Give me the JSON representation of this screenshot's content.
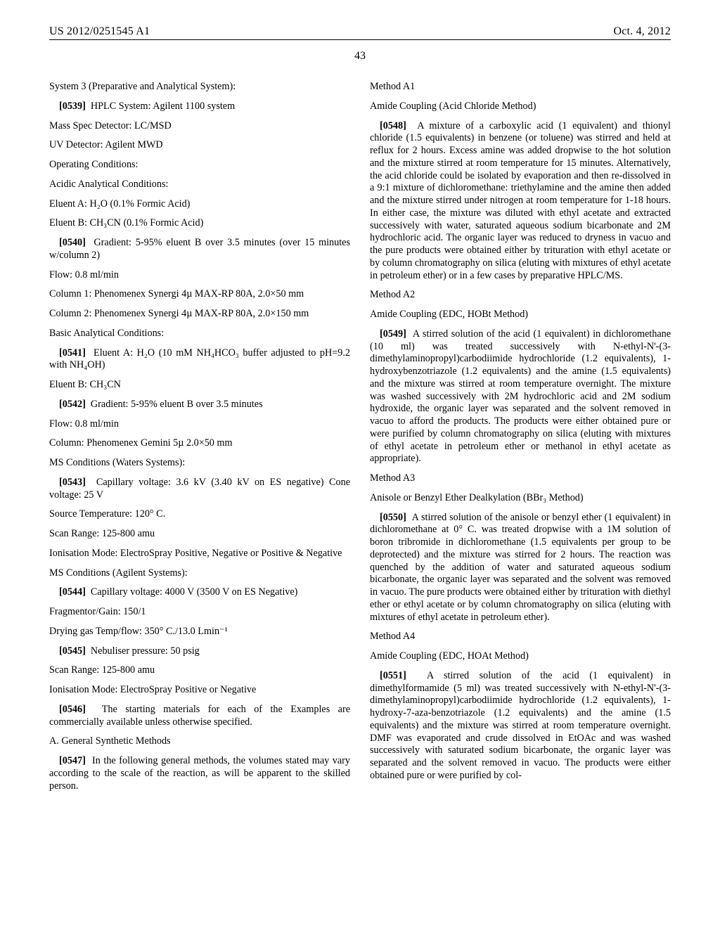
{
  "header": {
    "pub": "US 2012/0251545 A1",
    "date": "Oct. 4, 2012"
  },
  "pagenum": "43",
  "L": {
    "sys3": "System 3 (Preparative and Analytical System):",
    "p0539": "[0539]",
    "p0539t": "HPLC System: Agilent 1100 system",
    "ms": "Mass Spec Detector: LC/MSD",
    "uv": "UV Detector: Agilent MWD",
    "op": "Operating Conditions:",
    "acidic": "Acidic Analytical Conditions:",
    "elA": "Eluent A: H₂O (0.1% Formic Acid)",
    "elB": "Eluent B: CH₃CN (0.1% Formic Acid)",
    "p0540": "[0540]",
    "p0540t": "Gradient: 5-95% eluent B over 3.5 minutes (over 15 minutes w/column 2)",
    "flow1": "Flow: 0.8 ml/min",
    "col1": "Column 1: Phenomenex Synergi 4µ MAX-RP 80A, 2.0×50 mm",
    "col2": "Column 2: Phenomenex Synergi 4µ MAX-RP 80A, 2.0×150 mm",
    "basic": "Basic Analytical Conditions:",
    "p0541": "[0541]",
    "p0541t": "Eluent A: H₂O (10 mM NH₄HCO₃ buffer adjusted to pH=9.2 with NH₄OH)",
    "elB2": "Eluent B: CH₃CN",
    "p0542": "[0542]",
    "p0542t": "Gradient: 5-95% eluent B over 3.5 minutes",
    "flow2": "Flow: 0.8 ml/min",
    "col3": "Column: Phenomenex Gemini 5µ 2.0×50 mm",
    "mscw": "MS Conditions (Waters Systems):",
    "p0543": "[0543]",
    "p0543t": "Capillary voltage: 3.6 kV (3.40 kV on ES negative) Cone voltage: 25 V",
    "srcT": "Source Temperature: 120° C.",
    "scan1": "Scan Range: 125-800 amu",
    "ion1": "Ionisation Mode: ElectroSpray Positive, Negative or Positive & Negative",
    "msca": "MS Conditions (Agilent Systems):",
    "p0544": "[0544]",
    "p0544t": "Capillary voltage: 4000 V (3500 V on ES Negative)",
    "frag": "Fragmentor/Gain: 150/1",
    "dry": "Drying gas Temp/flow: 350° C./13.0 Lmin⁻¹",
    "p0545": "[0545]",
    "p0545t": "Nebuliser pressure: 50 psig",
    "scan2": "Scan Range: 125-800 amu",
    "ion2": "Ionisation Mode: ElectroSpray Positive or Negative",
    "p0546": "[0546]",
    "p0546t": "The starting materials for each of the Examples are commercially available unless otherwise specified.",
    "agen": "A. General Synthetic Methods",
    "p0547": "[0547]",
    "p0547t": "In the following general methods, the volumes stated may vary according to the scale of the reaction, as will be apparent to the skilled person."
  },
  "R": {
    "mA1": "Method A1",
    "mA1h": "Amide Coupling (Acid Chloride Method)",
    "p0548": "[0548]",
    "p0548t": "A mixture of a carboxylic acid (1 equivalent) and thionyl chloride (1.5 equivalents) in benzene (or toluene) was stirred and held at reflux for 2 hours. Excess amine was added dropwise to the hot solution and the mixture stirred at room temperature for 15 minutes. Alternatively, the acid chloride could be isolated by evaporation and then re-dissolved in a 9:1 mixture of dichloromethane: triethylamine and the amine then added and the mixture stirred under nitrogen at room temperature for 1-18 hours. In either case, the mixture was diluted with ethyl acetate and extracted successively with water, saturated aqueous sodium bicarbonate and 2M hydrochloric acid. The organic layer was reduced to dryness in vacuo and the pure products were obtained either by trituration with ethyl acetate or by column chromatography on silica (eluting with mixtures of ethyl acetate in petroleum ether) or in a few cases by preparative HPLC/MS.",
    "mA2": "Method A2",
    "mA2h": "Amide Coupling (EDC, HOBt Method)",
    "p0549": "[0549]",
    "p0549t": "A stirred solution of the acid (1 equivalent) in dichloromethane (10 ml) was treated successively with N-ethyl-N'-(3-dimethylaminopropyl)carbodiimide hydrochloride (1.2 equivalents), 1-hydroxybenzotriazole (1.2 equivalents) and the amine (1.5 equivalents) and the mixture was stirred at room temperature overnight. The mixture was washed successively with 2M hydrochloric acid and 2M sodium hydroxide, the organic layer was separated and the solvent removed in vacuo to afford the products. The products were either obtained pure or were purified by column chromatography on silica (eluting with mixtures of ethyl acetate in petroleum ether or methanol in ethyl acetate as appropriate).",
    "mA3": "Method A3",
    "mA3h": "Anisole or Benzyl Ether Dealkylation (BBr₃ Method)",
    "p0550": "[0550]",
    "p0550t": "A stirred solution of the anisole or benzyl ether (1 equivalent) in dichloromethane at 0° C. was treated dropwise with a 1M solution of boron tribromide in dichloromethane (1.5 equivalents per group to be deprotected) and the mixture was stirred for 2 hours. The reaction was quenched by the addition of water and saturated aqueous sodium bicarbonate, the organic layer was separated and the solvent was removed in vacuo. The pure products were obtained either by trituration with diethyl ether or ethyl acetate or by column chromatography on silica (eluting with mixtures of ethyl acetate in petroleum ether).",
    "mA4": "Method A4",
    "mA4h": "Amide Coupling (EDC, HOAt Method)",
    "p0551": "[0551]",
    "p0551t": "A stirred solution of the acid (1 equivalent) in dimethylformamide (5 ml) was treated successively with N-ethyl-N'-(3-dimethylaminopropyl)carbodiimide hydrochloride (1.2 equivalents), 1-hydroxy-7-aza-benzotriazole (1.2 equivalents) and the amine (1.5 equivalents) and the mixture was stirred at room temperature overnight. DMF was evaporated and crude dissolved in EtOAc and was washed successively with saturated sodium bicarbonate, the organic layer was separated and the solvent removed in vacuo. The products were either obtained pure or were purified by col-"
  }
}
